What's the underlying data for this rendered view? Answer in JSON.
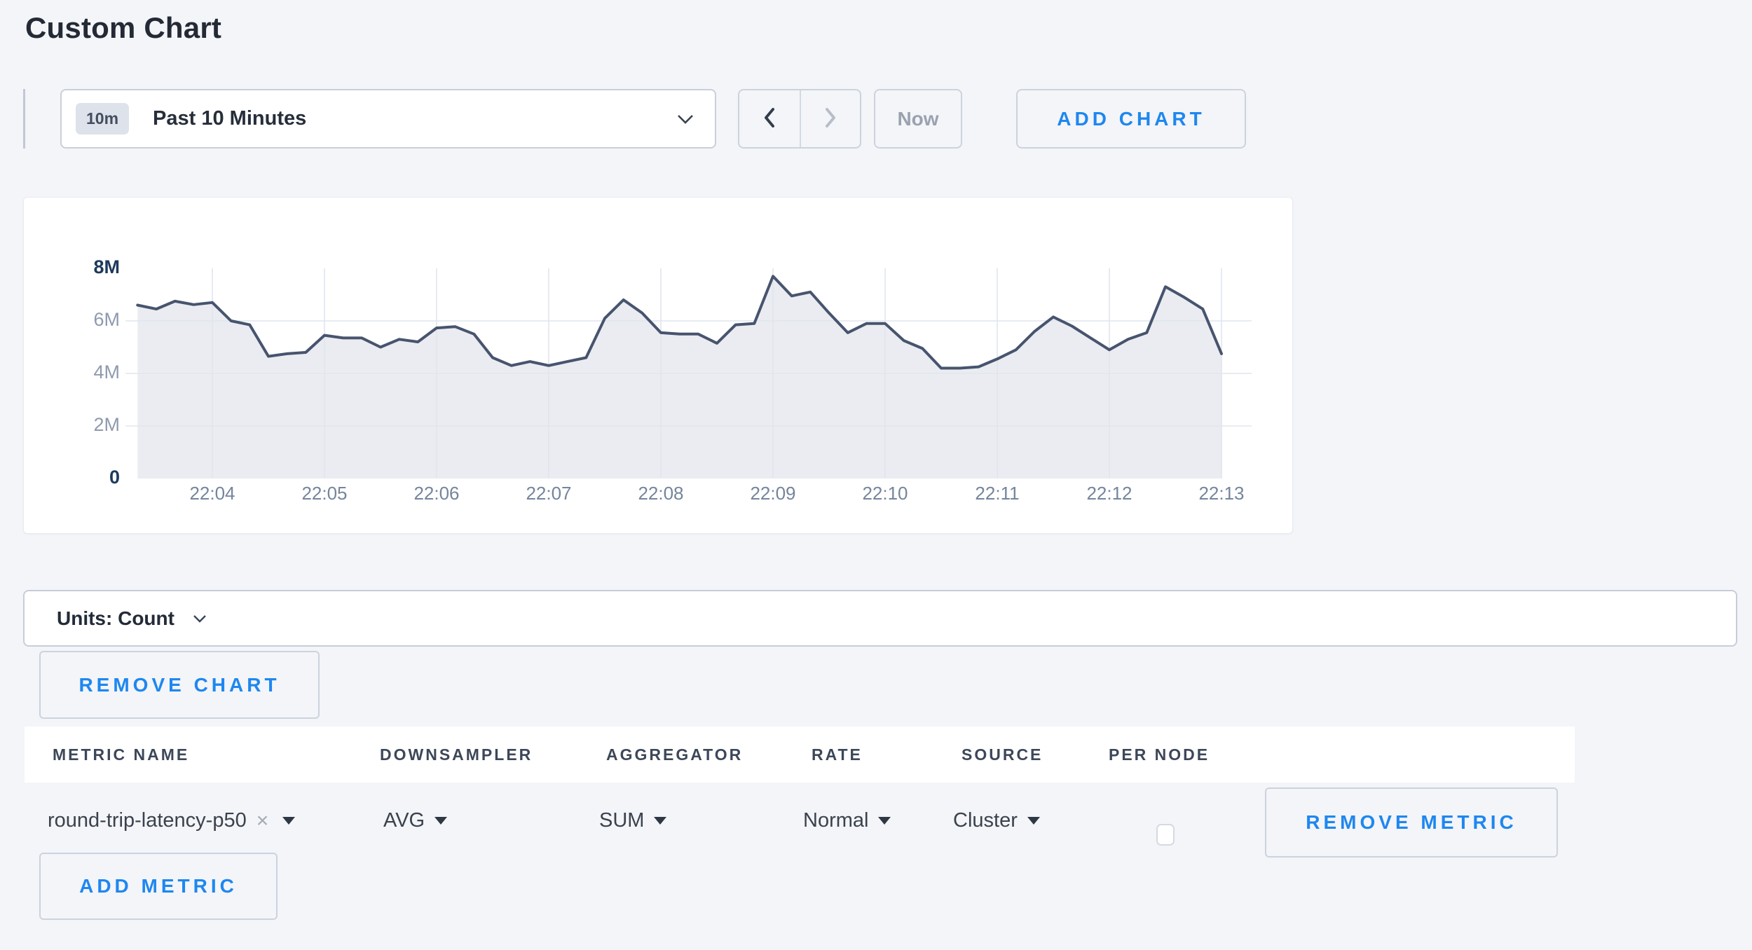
{
  "page": {
    "title": "Custom Chart"
  },
  "colors": {
    "accent_blue": "#1e87f0",
    "line": "#47546e",
    "fill": "#ebecf1",
    "grid": "#e0e6ee",
    "page_bg": "#f3f5f8",
    "axis_label_strong": "#1d3a5c",
    "axis_label_muted": "#8e9aae",
    "axis_time_label": "#75859c"
  },
  "icons": {
    "time_back": "chevron-left",
    "time_forward": "chevron-right",
    "time_range_expand": "chevron-down",
    "units_expand": "chevron-down",
    "metric_clear": "×",
    "select_caret": "▼"
  },
  "toolbar": {
    "range_badge": "10m",
    "range_label": "Past 10 Minutes",
    "now_label": "Now",
    "add_chart_label": "ADD CHART"
  },
  "chart_data": {
    "type": "area",
    "title": "",
    "xlabel": "",
    "ylabel": "",
    "unit": "Count",
    "legend": "none",
    "grid": true,
    "ylim": [
      0,
      8000000
    ],
    "y_tick_labels": [
      "0",
      "2M",
      "4M",
      "6M",
      "8M"
    ],
    "x_tick_labels": [
      "22:04",
      "22:05",
      "22:06",
      "22:07",
      "22:08",
      "22:09",
      "22:10",
      "22:11",
      "22:12",
      "22:13"
    ],
    "point_interval_seconds": 10,
    "points_before_first_tick": 4,
    "series": [
      {
        "name": "round-trip-latency-p50",
        "values_millions": [
          6.6,
          6.45,
          6.75,
          6.62,
          6.7,
          6.0,
          5.85,
          4.65,
          4.75,
          4.8,
          5.45,
          5.35,
          5.35,
          5.0,
          5.3,
          5.2,
          5.73,
          5.78,
          5.5,
          4.6,
          4.3,
          4.45,
          4.3,
          4.45,
          4.6,
          6.1,
          6.8,
          6.3,
          5.55,
          5.5,
          5.5,
          5.15,
          5.85,
          5.9,
          7.7,
          6.95,
          7.1,
          6.3,
          5.55,
          5.9,
          5.9,
          5.25,
          4.95,
          4.2,
          4.2,
          4.25,
          4.55,
          4.9,
          5.6,
          6.15,
          5.8,
          5.35,
          4.9,
          5.3,
          5.55,
          7.3,
          6.9,
          6.45,
          4.75
        ]
      }
    ]
  },
  "units_bar": {
    "label": "Units: Count"
  },
  "chart_actions": {
    "remove_chart_label": "REMOVE CHART",
    "add_metric_label": "ADD METRIC"
  },
  "metrics_table": {
    "headers": [
      "METRIC NAME",
      "DOWNSAMPLER",
      "AGGREGATOR",
      "RATE",
      "SOURCE",
      "PER NODE"
    ],
    "rows": [
      {
        "metric_name": "round-trip-latency-p50",
        "clear_icon": "×",
        "downsampler": "AVG",
        "aggregator": "SUM",
        "rate": "Normal",
        "source": "Cluster",
        "per_node_checked": false,
        "remove_label": "REMOVE METRIC"
      }
    ]
  }
}
